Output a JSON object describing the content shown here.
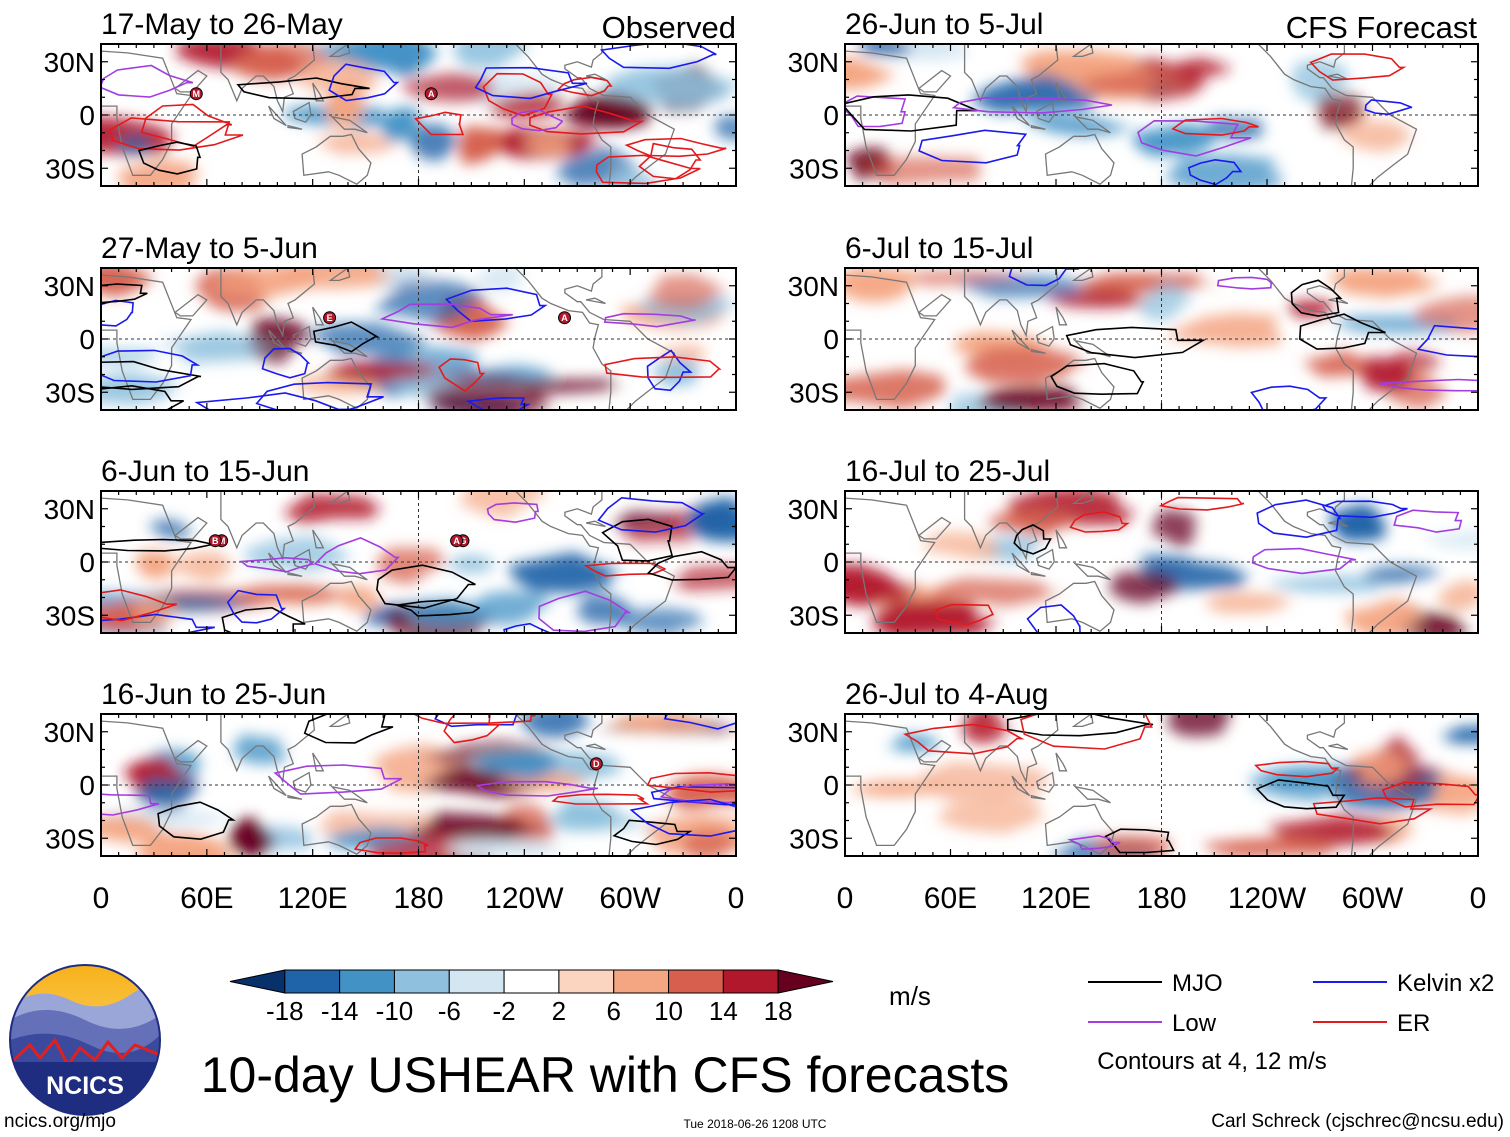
{
  "chart_data": {
    "type": "heatmap",
    "title": "10-day USHEAR with CFS forecasts",
    "units": "m/s",
    "column_titles": [
      "Observed",
      "CFS Forecast"
    ],
    "panels": [
      {
        "column": "observed",
        "period": "17-May to 26-May",
        "markers": [
          "M",
          "A"
        ]
      },
      {
        "column": "observed",
        "period": "27-May to 5-Jun",
        "markers": [
          "E",
          "A"
        ]
      },
      {
        "column": "observed",
        "period": "6-Jun to 15-Jun",
        "markers": [
          "G",
          "M",
          "A",
          "B"
        ]
      },
      {
        "column": "observed",
        "period": "16-Jun to 25-Jun",
        "markers": [
          "D"
        ]
      },
      {
        "column": "forecast",
        "period": "26-Jun to 5-Jul",
        "markers": []
      },
      {
        "column": "forecast",
        "period": "6-Jul to 15-Jul",
        "markers": []
      },
      {
        "column": "forecast",
        "period": "16-Jul to 25-Jul",
        "markers": []
      },
      {
        "column": "forecast",
        "period": "26-Jul to 4-Aug",
        "markers": []
      }
    ],
    "x_axis": {
      "ticks": [
        "0",
        "60E",
        "120E",
        "180",
        "120W",
        "60W",
        "0"
      ],
      "range_deg_east": [
        0,
        360
      ],
      "tick_values": [
        0,
        60,
        120,
        180,
        240,
        300,
        360
      ]
    },
    "y_axis": {
      "ticks": [
        "30N",
        "0",
        "30S"
      ],
      "range_deg": [
        -40,
        40
      ],
      "tick_values": [
        30,
        0,
        -30
      ]
    },
    "colorbar": {
      "labels": [
        "-18",
        "-14",
        "-10",
        "-6",
        "-2",
        "2",
        "6",
        "10",
        "14",
        "18"
      ],
      "levels": [
        -18,
        -14,
        -10,
        -6,
        -2,
        2,
        6,
        10,
        14,
        18
      ],
      "colors": [
        "#08306b",
        "#1f63a8",
        "#4292c6",
        "#8fc1de",
        "#d3e6f2",
        "#ffffff",
        "#fcd5c0",
        "#f4a582",
        "#d6604d",
        "#b2182b",
        "#67001f"
      ]
    },
    "legend": {
      "items": [
        {
          "label": "MJO",
          "color": "#000000"
        },
        {
          "label": "Kelvin x2",
          "color": "#1a1aee"
        },
        {
          "label": "Low",
          "color": "#a33de0"
        },
        {
          "label": "ER",
          "color": "#e31a1c"
        }
      ],
      "note": "Contours at 4, 12 m/s"
    }
  },
  "logo": {
    "text": "NCICS"
  },
  "footer": {
    "url": "ncics.org/mjo",
    "timestamp": "Tue 2018-06-26 1208 UTC",
    "credit": "Carl Schreck (cjschrec@ncsu.edu)"
  }
}
